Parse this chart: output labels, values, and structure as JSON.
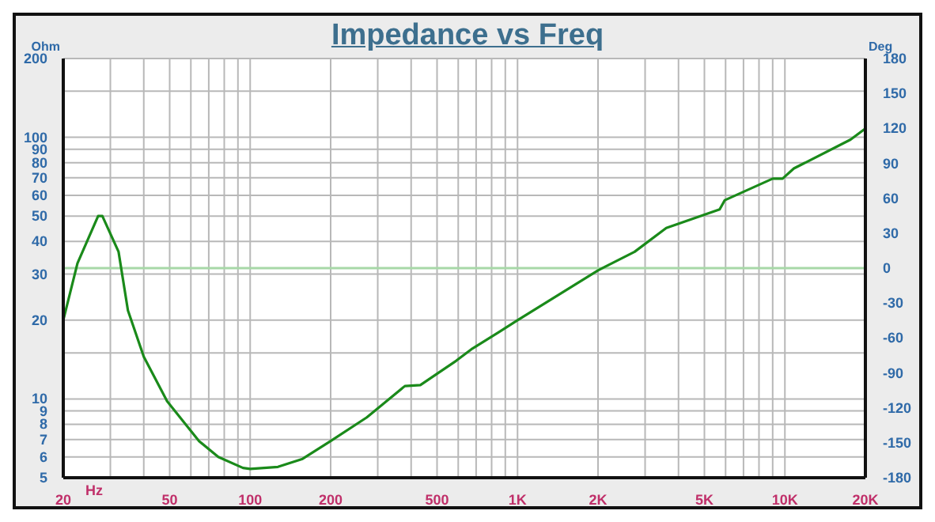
{
  "chart_data": {
    "type": "line",
    "title": "Impedance vs Freq",
    "xlabel": "Hz",
    "ylabel": "Ohm",
    "y2label": "Deg",
    "x": [
      20,
      22.6,
      27,
      28,
      32.2,
      34.9,
      40,
      48.9,
      64.4,
      76,
      94,
      100,
      127,
      157,
      200,
      273,
      379,
      433,
      590,
      679,
      852,
      1000,
      2000,
      2740,
      3600,
      5700,
      5960,
      9000,
      9800,
      10800,
      17600,
      20000
    ],
    "series": [
      {
        "color": "#1a8a1a",
        "values": [
          20,
          33,
          50,
          50,
          36.5,
          21.8,
          14.5,
          9.8,
          6.9,
          6,
          5.45,
          5.4,
          5.5,
          5.9,
          6.9,
          8.5,
          11.2,
          11.3,
          14,
          15.6,
          18,
          20,
          31,
          36.5,
          45,
          53,
          57.5,
          69.5,
          69.5,
          76,
          98,
          108
        ]
      }
    ],
    "log": "xy",
    "grid": true,
    "legend": false,
    "marker": "none",
    "line_style": "solid",
    "xlim": [
      20,
      20000
    ],
    "xticks": [
      20,
      {
        "value": 30,
        "label": null
      },
      {
        "value": 40,
        "label": null
      },
      50,
      {
        "value": 60,
        "label": null
      },
      {
        "value": 70,
        "label": null
      },
      {
        "value": 80,
        "label": null
      },
      {
        "value": 90,
        "label": null
      },
      100,
      200,
      {
        "value": 300,
        "label": null
      },
      {
        "value": 400,
        "label": null
      },
      500,
      {
        "value": 600,
        "label": null
      },
      {
        "value": 700,
        "label": null
      },
      {
        "value": 800,
        "label": null
      },
      {
        "value": 900,
        "label": null
      },
      {
        "value": 1000,
        "label": "1K"
      },
      {
        "value": 2000,
        "label": "2K"
      },
      {
        "value": 3000,
        "label": null
      },
      {
        "value": 4000,
        "label": null
      },
      {
        "value": 5000,
        "label": "5K"
      },
      {
        "value": 6000,
        "label": null
      },
      {
        "value": 7000,
        "label": null
      },
      {
        "value": 8000,
        "label": null
      },
      {
        "value": 9000,
        "label": null
      },
      {
        "value": 10000,
        "label": "10K"
      },
      {
        "value": 20000,
        "label": "20K"
      }
    ],
    "ylim": [
      5,
      200
    ],
    "yticks": [
      5,
      6,
      7,
      8,
      9,
      10,
      {
        "value": 15,
        "label": null
      },
      20,
      30,
      40,
      50,
      60,
      70,
      80,
      90,
      100,
      {
        "value": 150,
        "label": null
      },
      200
    ],
    "y2lim": [
      -180,
      180
    ],
    "y2ticks": [
      -180,
      -150,
      -120,
      -90,
      -60,
      -30,
      0,
      30,
      60,
      90,
      120,
      150,
      180
    ],
    "ref_lines": [
      {
        "axis": "y2",
        "value": 0,
        "color": "#a8d8a8"
      }
    ]
  }
}
